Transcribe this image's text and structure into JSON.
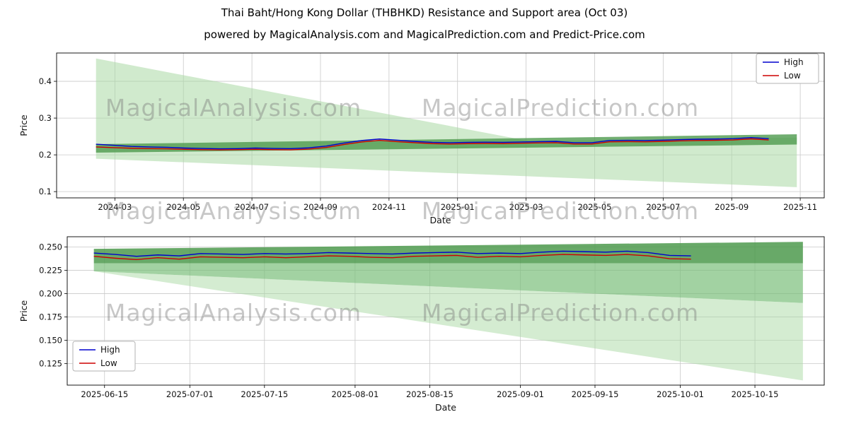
{
  "page": {
    "title": "Thai Baht/Hong Kong Dollar (THBHKD) Resistance and Support area (Oct 03)",
    "subtitle": "powered by MagicalAnalysis.com and MagicalPrediction.com and Predict-Price.com"
  },
  "watermarks": [
    "MagicalAnalysis.com",
    "MagicalPrediction.com"
  ],
  "colors": {
    "high_line": "#0000cd",
    "low_line": "#cd0000",
    "area_light_green": "#a9d9a4",
    "area_dark_green": "#4e9a4e",
    "grid": "#c9c9c9"
  },
  "chart_data": [
    {
      "type": "line",
      "title": "",
      "xlabel": "Date",
      "ylabel": "Price",
      "x_unit": "months since 2024-01-01",
      "xlim": [
        0.3,
        22.7
      ],
      "ylim": [
        0.083,
        0.477
      ],
      "grid": true,
      "legend_position": "upper right",
      "x_ticks": [
        {
          "v": 2,
          "label": "2024-03"
        },
        {
          "v": 4,
          "label": "2024-05"
        },
        {
          "v": 6,
          "label": "2024-07"
        },
        {
          "v": 8,
          "label": "2024-09"
        },
        {
          "v": 10,
          "label": "2024-11"
        },
        {
          "v": 12,
          "label": "2025-01"
        },
        {
          "v": 14,
          "label": "2025-03"
        },
        {
          "v": 16,
          "label": "2025-05"
        },
        {
          "v": 18,
          "label": "2025-07"
        },
        {
          "v": 20,
          "label": "2025-09"
        },
        {
          "v": 22,
          "label": "2025-11"
        }
      ],
      "y_ticks": [
        {
          "v": 0.1,
          "label": "0.1"
        },
        {
          "v": 0.2,
          "label": "0.2"
        },
        {
          "v": 0.3,
          "label": "0.3"
        },
        {
          "v": 0.4,
          "label": "0.4"
        }
      ],
      "series": [
        {
          "name": "High",
          "color": "#0000cd",
          "x": [
            1.45,
            1.97,
            2.48,
            3.0,
            3.52,
            4.03,
            4.55,
            5.07,
            5.58,
            6.1,
            6.62,
            7.13,
            7.65,
            8.17,
            8.68,
            9.2,
            9.72,
            10.23,
            10.75,
            11.27,
            11.78,
            12.3,
            12.82,
            13.33,
            13.85,
            14.37,
            14.88,
            15.4,
            15.92,
            16.43,
            16.95,
            17.47,
            17.98,
            18.5,
            19.02,
            19.53,
            20.05,
            20.57,
            21.08
          ],
          "y": [
            0.229,
            0.226,
            0.223,
            0.2215,
            0.2205,
            0.2185,
            0.2175,
            0.2165,
            0.217,
            0.2185,
            0.2175,
            0.217,
            0.219,
            0.224,
            0.232,
            0.239,
            0.243,
            0.24,
            0.2365,
            0.234,
            0.233,
            0.234,
            0.2345,
            0.234,
            0.235,
            0.236,
            0.2365,
            0.233,
            0.233,
            0.239,
            0.2395,
            0.239,
            0.24,
            0.2415,
            0.2425,
            0.243,
            0.244,
            0.247,
            0.244
          ]
        },
        {
          "name": "Low",
          "color": "#cd0000",
          "x": [
            1.45,
            1.97,
            2.48,
            3.0,
            3.52,
            4.03,
            4.55,
            5.07,
            5.58,
            6.1,
            6.62,
            7.13,
            7.65,
            8.17,
            8.68,
            9.2,
            9.72,
            10.23,
            10.75,
            11.27,
            11.78,
            12.3,
            12.82,
            13.33,
            13.85,
            14.37,
            14.88,
            15.4,
            15.92,
            16.43,
            16.95,
            17.47,
            17.98,
            18.5,
            19.02,
            19.53,
            20.05,
            20.57,
            21.08
          ],
          "y": [
            0.2215,
            0.2195,
            0.218,
            0.217,
            0.2165,
            0.215,
            0.214,
            0.2135,
            0.214,
            0.215,
            0.214,
            0.2135,
            0.2155,
            0.22,
            0.228,
            0.235,
            0.2395,
            0.236,
            0.233,
            0.2305,
            0.2295,
            0.2305,
            0.231,
            0.2305,
            0.2315,
            0.2325,
            0.233,
            0.2295,
            0.2295,
            0.2355,
            0.236,
            0.2355,
            0.2365,
            0.238,
            0.239,
            0.2395,
            0.2405,
            0.2435,
            0.2405
          ]
        }
      ],
      "areas": [
        {
          "name": "resistance-wedge",
          "color": "#a9d9a4",
          "opacity": 0.55,
          "points": [
            [
              1.45,
              0.462
            ],
            [
              14.2,
              0.2355
            ],
            [
              1.45,
              0.2215
            ]
          ]
        },
        {
          "name": "support-fan",
          "color": "#a9d9a4",
          "opacity": 0.55,
          "points": [
            [
              1.45,
              0.2215
            ],
            [
              21.9,
              0.247
            ],
            [
              21.9,
              0.112
            ],
            [
              1.45,
              0.1895
            ]
          ]
        },
        {
          "name": "mid-band",
          "color": "#4e9a4e",
          "opacity": 0.8,
          "points": [
            [
              1.45,
              0.229
            ],
            [
              21.9,
              0.256
            ],
            [
              21.9,
              0.228
            ],
            [
              1.45,
              0.206
            ]
          ]
        }
      ]
    },
    {
      "type": "line",
      "title": "",
      "xlabel": "Date",
      "ylabel": "Price",
      "x_unit": "days since 2025-06-01",
      "xlim": [
        7,
        149
      ],
      "ylim": [
        0.102,
        0.261
      ],
      "grid": true,
      "legend_position": "lower left",
      "x_ticks": [
        {
          "v": 14,
          "label": "2025-06-15"
        },
        {
          "v": 30,
          "label": "2025-07-01"
        },
        {
          "v": 44,
          "label": "2025-07-15"
        },
        {
          "v": 61,
          "label": "2025-08-01"
        },
        {
          "v": 75,
          "label": "2025-08-15"
        },
        {
          "v": 92,
          "label": "2025-09-01"
        },
        {
          "v": 106,
          "label": "2025-09-15"
        },
        {
          "v": 122,
          "label": "2025-10-01"
        },
        {
          "v": 136,
          "label": "2025-10-15"
        }
      ],
      "y_ticks": [
        {
          "v": 0.125,
          "label": "0.125"
        },
        {
          "v": 0.15,
          "label": "0.150"
        },
        {
          "v": 0.175,
          "label": "0.175"
        },
        {
          "v": 0.2,
          "label": "0.200"
        },
        {
          "v": 0.225,
          "label": "0.225"
        },
        {
          "v": 0.25,
          "label": "0.250"
        }
      ],
      "series": [
        {
          "name": "High",
          "color": "#0000cd",
          "x": [
            12,
            16,
            20,
            24,
            28,
            32,
            36,
            40,
            44,
            48,
            52,
            56,
            60,
            64,
            68,
            72,
            76,
            80,
            84,
            88,
            92,
            96,
            100,
            104,
            108,
            112,
            116,
            120,
            124
          ],
          "y": [
            0.2435,
            0.242,
            0.24,
            0.2415,
            0.2405,
            0.243,
            0.2425,
            0.242,
            0.243,
            0.2425,
            0.243,
            0.244,
            0.2435,
            0.243,
            0.2425,
            0.2435,
            0.244,
            0.2445,
            0.243,
            0.2435,
            0.243,
            0.2445,
            0.2455,
            0.245,
            0.2445,
            0.2455,
            0.244,
            0.241,
            0.2405
          ]
        },
        {
          "name": "Low",
          "color": "#cd0000",
          "x": [
            12,
            16,
            20,
            24,
            28,
            32,
            36,
            40,
            44,
            48,
            52,
            56,
            60,
            64,
            68,
            72,
            76,
            80,
            84,
            88,
            92,
            96,
            100,
            104,
            108,
            112,
            116,
            120,
            124
          ],
          "y": [
            0.24,
            0.238,
            0.2365,
            0.2385,
            0.237,
            0.2395,
            0.239,
            0.2385,
            0.2395,
            0.2385,
            0.2395,
            0.2405,
            0.24,
            0.239,
            0.2385,
            0.24,
            0.2405,
            0.241,
            0.239,
            0.24,
            0.2395,
            0.241,
            0.242,
            0.2415,
            0.241,
            0.242,
            0.2405,
            0.2375,
            0.237
          ]
        }
      ],
      "areas": [
        {
          "name": "band-dark",
          "color": "#4e9a4e",
          "opacity": 0.85,
          "points": [
            [
              12,
              0.248
            ],
            [
              145,
              0.2555
            ],
            [
              145,
              0.2325
            ],
            [
              12,
              0.2325
            ]
          ]
        },
        {
          "name": "band-medium",
          "color": "#7abf7a",
          "opacity": 0.7,
          "points": [
            [
              12,
              0.2325
            ],
            [
              145,
              0.2325
            ],
            [
              145,
              0.19
            ],
            [
              12,
              0.224
            ]
          ]
        },
        {
          "name": "support-fan",
          "color": "#a9d9a4",
          "opacity": 0.5,
          "points": [
            [
              12,
              0.224
            ],
            [
              145,
              0.19
            ],
            [
              145,
              0.107
            ]
          ]
        }
      ]
    }
  ]
}
